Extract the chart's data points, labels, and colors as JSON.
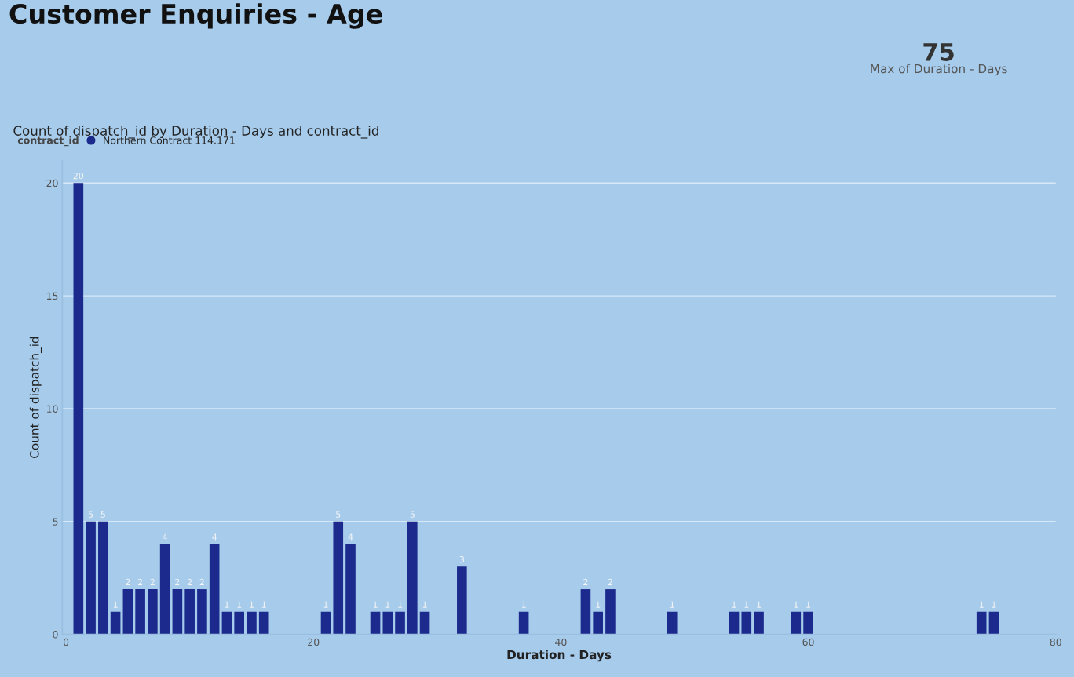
{
  "chart_data": {
    "type": "bar",
    "title": "Customer Enquiries - Age",
    "subtitle": "Count of dispatch_id by Duration - Days and contract_id",
    "xlabel": "Duration - Days",
    "ylabel": "Count of dispatch_id",
    "legend_title": "contract_id",
    "annotations": [
      "75",
      "Max of Duration - Days"
    ],
    "x": [
      1,
      2,
      3,
      4,
      5,
      6,
      7,
      8,
      9,
      10,
      11,
      12,
      13,
      14,
      15,
      16,
      21,
      22,
      23,
      25,
      26,
      27,
      28,
      29,
      32,
      37,
      42,
      43,
      44,
      49,
      54,
      55,
      56,
      59,
      60,
      74,
      75
    ],
    "series": [
      {
        "name": "Northern Contract 114.171",
        "color": "#1b2a8c",
        "values": [
          20,
          5,
          5,
          1,
          2,
          2,
          2,
          4,
          2,
          2,
          2,
          4,
          1,
          1,
          1,
          1,
          1,
          5,
          4,
          1,
          1,
          1,
          5,
          1,
          3,
          1,
          2,
          1,
          2,
          1,
          1,
          1,
          1,
          1,
          1,
          1,
          1
        ]
      }
    ],
    "xlim": [
      -0.3,
      80
    ],
    "xticks": [
      0,
      20,
      40,
      60,
      80
    ],
    "ylim": [
      0,
      21
    ],
    "yticks": [
      0,
      5,
      10,
      15,
      20
    ],
    "grid": "y",
    "legend": "top left",
    "data_labels": true
  }
}
